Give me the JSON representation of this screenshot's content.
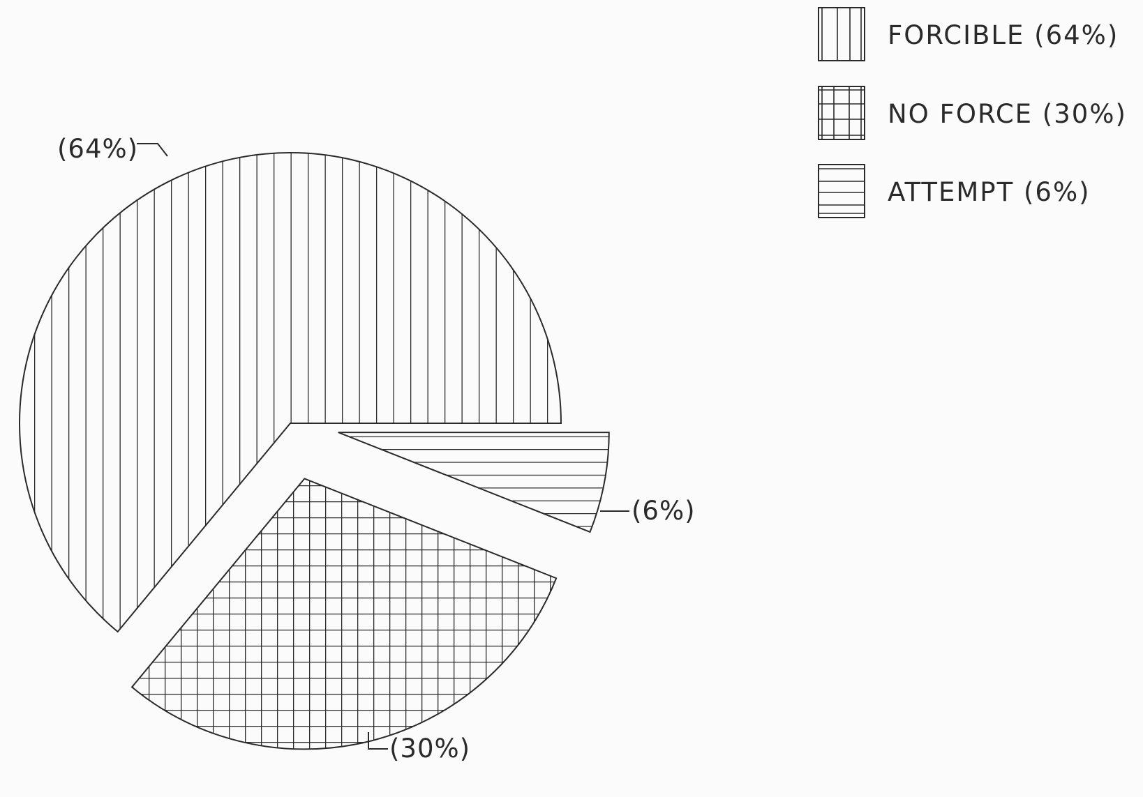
{
  "chart_data": {
    "type": "pie",
    "slices": [
      {
        "label": "FORCIBLE",
        "value": 64,
        "legend_text": "FORCIBLE (64%)",
        "data_label": "(64%)",
        "pattern": "vertical-lines"
      },
      {
        "label": "NO FORCE",
        "value": 30,
        "legend_text": "NO FORCE (30%)",
        "data_label": "(30%)",
        "pattern": "grid"
      },
      {
        "label": "ATTEMPT",
        "value": 6,
        "legend_text": "ATTEMPT (6%)",
        "data_label": "(6%)",
        "pattern": "horizontal-lines"
      }
    ],
    "exploded": true,
    "legend_position": "top-right",
    "colors": {
      "ink": "#2a2a2a",
      "background": "#fbfbfb"
    }
  }
}
